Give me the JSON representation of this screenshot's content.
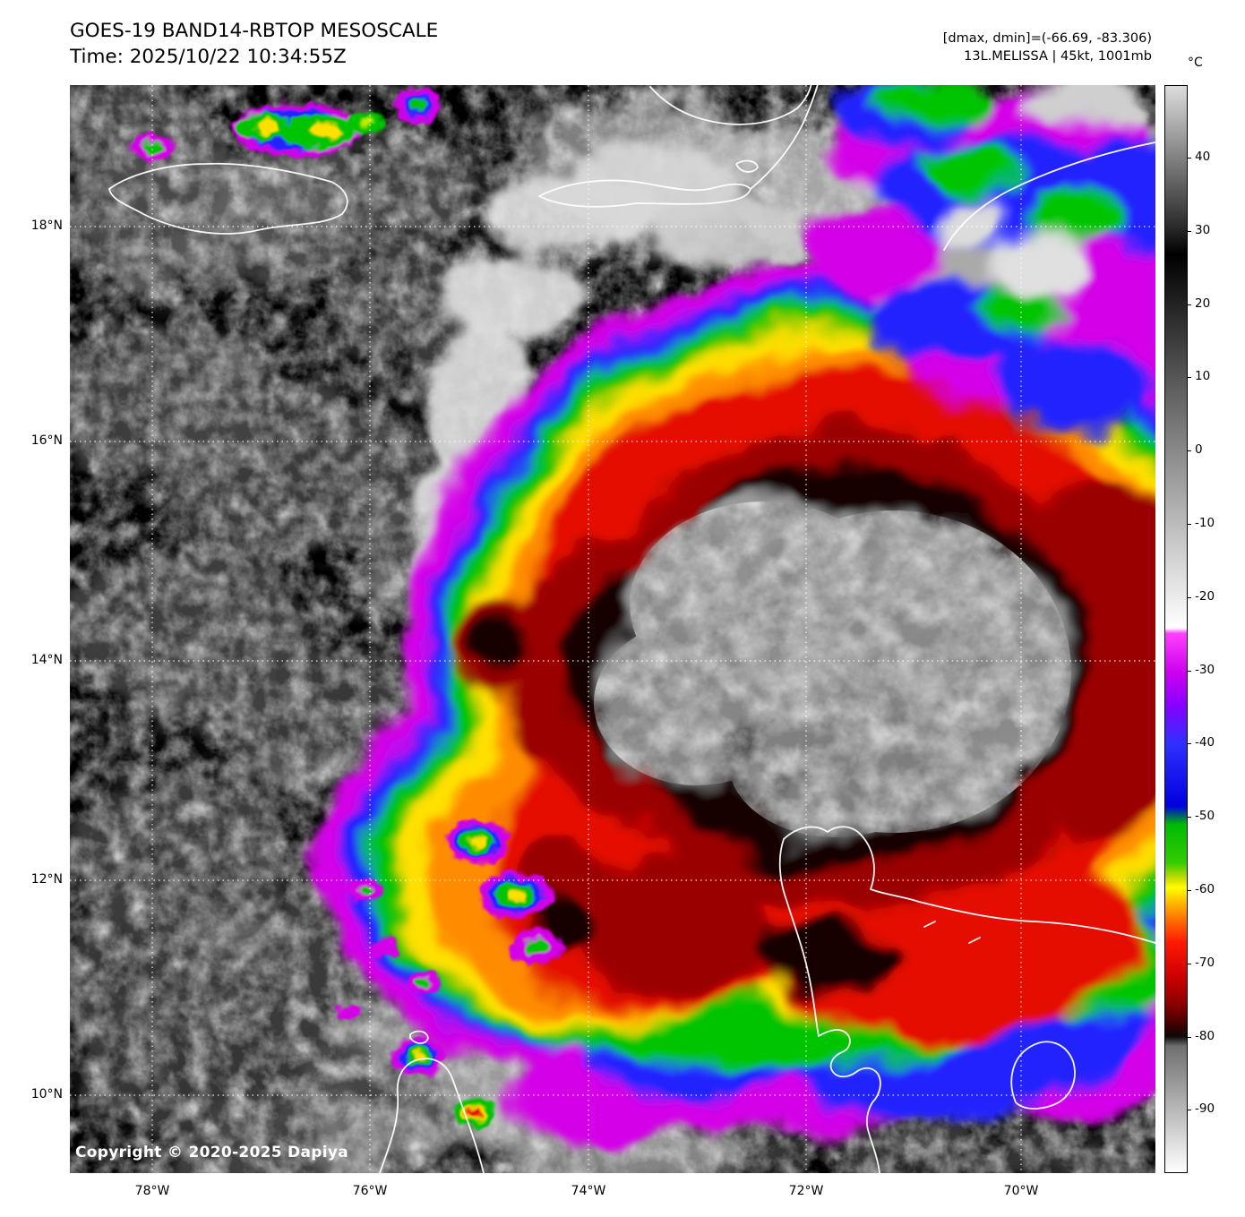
{
  "header": {
    "title": "GOES-19 BAND14-RBTOP MESOSCALE",
    "time": "Time: 2025/10/22 10:34:55Z",
    "dmax_dmin": "[dmax, dmin]=(-66.69, -83.306)",
    "storm": "13L.MELISSA | 45kt, 1001mb"
  },
  "colorbar": {
    "unit": "°C",
    "ticks": [
      "40",
      "30",
      "20",
      "10",
      "0",
      "-10",
      "-20",
      "-30",
      "-40",
      "-50",
      "-60",
      "-70",
      "-80",
      "-90"
    ]
  },
  "axes": {
    "lat": [
      "18°N",
      "16°N",
      "14°N",
      "12°N",
      "10°N"
    ],
    "lon": [
      "78°W",
      "76°W",
      "74°W",
      "72°W",
      "70°W"
    ]
  },
  "map": {
    "copyright": "Copyright © 2020-2025 Dapiya"
  },
  "colors": {
    "page_background": "#ffffff",
    "map_background": "#000000",
    "gridlines": "#ffffff",
    "coastlines": "#ffffff"
  }
}
